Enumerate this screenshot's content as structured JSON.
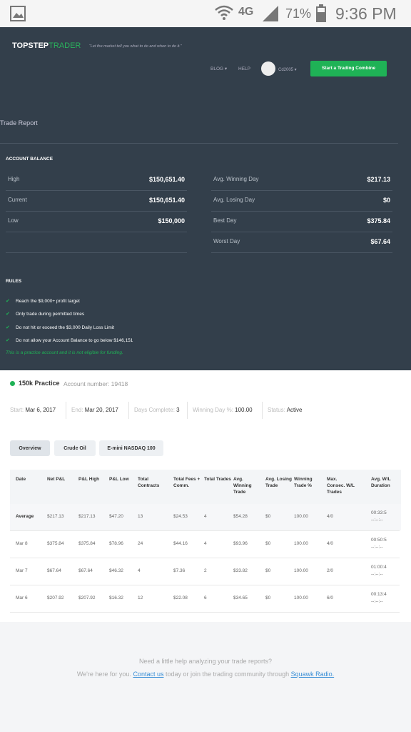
{
  "status_bar": {
    "network": "4G",
    "battery": "71%",
    "time": "9:36 PM"
  },
  "header": {
    "brand": "TOPSTEP",
    "brand_accent": "TRADER",
    "tagline": "“Let the market tell you what to do and when to do it.”",
    "nav": [
      "BLOG ▾",
      "HELP"
    ],
    "user": "Cd2005 ▾",
    "button": "Start a Trading Combine"
  },
  "page_title": "Trade Report",
  "account_balance": {
    "title": "ACCOUNT BALANCE",
    "left": [
      {
        "label": "High",
        "value": "$150,651.40"
      },
      {
        "label": "Current",
        "value": "$150,651.40"
      },
      {
        "label": "Low",
        "value": "$150,000"
      }
    ],
    "right": [
      {
        "label": "Avg. Winning Day",
        "value": "$217.13"
      },
      {
        "label": "Avg. Losing Day",
        "value": "$0"
      },
      {
        "label": "Best Day",
        "value": "$375.84"
      },
      {
        "label": "Worst Day",
        "value": "$67.64"
      }
    ]
  },
  "rules": {
    "title": "RULES",
    "items": [
      "Reach the $9,000+ profit target",
      "Only trade during permitted times",
      "Do not hit or exceed the $3,000 Daily Loss Limit",
      "Do not allow your Account Balance to go below $146,151"
    ],
    "note": "This is a practice account and it is not eligible for funding."
  },
  "account": {
    "name": "150k Practice",
    "number": "Account number: 19418"
  },
  "stats": [
    {
      "label": "Start:",
      "value": "Mar 6, 2017"
    },
    {
      "label": "End:",
      "value": "Mar 20, 2017"
    },
    {
      "label": "Days Complete:",
      "value": "3"
    },
    {
      "label": "Winning Day %:",
      "value": "100.00"
    },
    {
      "label": "Status:",
      "value": "Active"
    }
  ],
  "tabs": [
    "Overview",
    "Crude Oil",
    "E-mini NASDAQ 100"
  ],
  "table": {
    "headers": [
      "Date",
      "Net P&L",
      "P&L High",
      "P&L Low",
      "Total Contracts",
      "Total Fees + Comm.",
      "Total Trades",
      "Avg. Winning Trade",
      "Avg. Losing Trade",
      "Winning Trade %",
      "Max. Consec. W/L Trades",
      "Avg. W/L Duration"
    ],
    "rows": [
      {
        "cells": [
          "Average",
          "$217.13",
          "$217.13",
          "$47.20",
          "13",
          "$24.53",
          "4",
          "$54.28",
          "$0",
          "100.00",
          "4/0"
        ],
        "duration": [
          "00:33:5",
          "--:--:--"
        ]
      },
      {
        "cells": [
          "Mar 8",
          "$375.84",
          "$375.84",
          "$78.96",
          "24",
          "$44.16",
          "4",
          "$93.96",
          "$0",
          "100.00",
          "4/0"
        ],
        "duration": [
          "00:50:5",
          "--:--:--"
        ]
      },
      {
        "cells": [
          "Mar 7",
          "$67.64",
          "$67.64",
          "$46.32",
          "4",
          "$7.36",
          "2",
          "$33.82",
          "$0",
          "100.00",
          "2/0"
        ],
        "duration": [
          "01:00:4",
          "--:--:--"
        ]
      },
      {
        "cells": [
          "Mar 6",
          "$207.92",
          "$207.92",
          "$16.32",
          "12",
          "$22.08",
          "6",
          "$34.65",
          "$0",
          "100.00",
          "6/0"
        ],
        "duration": [
          "00:13:4",
          "--:--:--"
        ]
      }
    ]
  },
  "footer": {
    "question": "Need a little help analyzing your trade reports?",
    "line_start": "We're here for you.",
    "contact_link": "Contact us",
    "line_middle": "today or join the trading community through",
    "squawk_link": "Squawk Radio."
  }
}
